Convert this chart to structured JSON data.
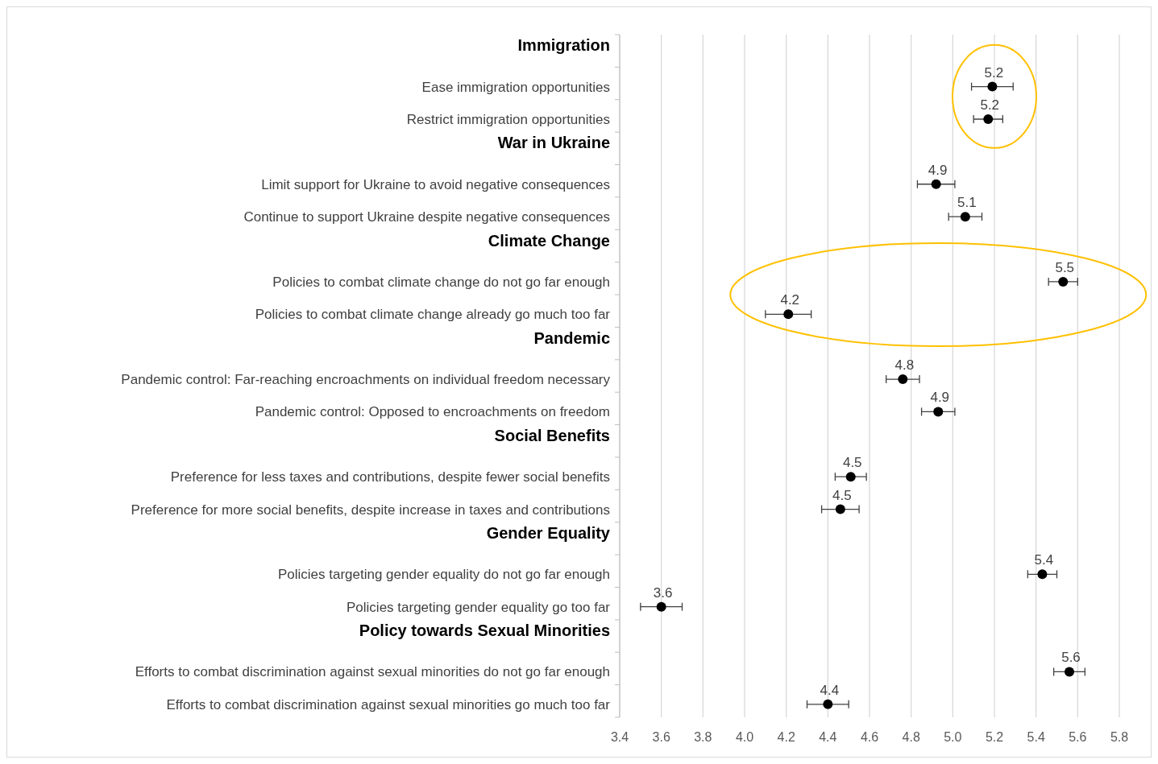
{
  "chart_data": {
    "type": "scatter",
    "orientation": "horizontal",
    "marker": "circle",
    "grid": "x",
    "categories": [
      "Immigration",
      "Ease immigration opportunities",
      "Restrict immigration opportunities",
      "War in Ukraine",
      "Limit support for Ukraine to avoid negative consequences",
      "Continue to support Ukraine despite negative consequences",
      "Climate Change",
      "Policies to combat climate change do not go far enough",
      "Policies to combat climate change already go much too far",
      "Pandemic",
      "Pandemic control: Far-reaching encroachments on individual freedom necessary",
      "Pandemic control: Opposed to encroachments on freedom",
      "Social Benefits",
      "Preference for less taxes and contributions, despite fewer social benefits",
      "Preference for more social benefits, despite increase in taxes and contributions",
      "Gender Equality",
      "Policies targeting gender equality do not go far enough",
      "Policies targeting gender equality go too far",
      "Policy towards Sexual Minorities",
      "Efforts to combat discrimination against sexual minorities do not go far enough",
      "Efforts to combat discrimination against sexual minorities go much too far"
    ],
    "series": [
      {
        "color": "#000000",
        "values": [
          null,
          5.19,
          5.17,
          null,
          4.92,
          5.06,
          null,
          5.53,
          4.21,
          null,
          4.76,
          4.93,
          null,
          4.51,
          4.46,
          null,
          5.43,
          3.6,
          null,
          5.56,
          4.4
        ],
        "errors": [
          null,
          0.1,
          0.07,
          null,
          0.09,
          0.08,
          null,
          0.07,
          0.11,
          null,
          0.08,
          0.08,
          null,
          0.075,
          0.09,
          null,
          0.07,
          0.1,
          null,
          0.075,
          0.1
        ],
        "value_labels": [
          null,
          "5.2",
          "5.2",
          null,
          "4.9",
          "5.1",
          null,
          "5.5",
          "4.2",
          null,
          "4.8",
          "4.9",
          null,
          "4.5",
          "4.5",
          null,
          "5.4",
          "3.6",
          null,
          "5.6",
          "4.4"
        ]
      }
    ],
    "xlim": [
      3.4,
      5.8
    ],
    "xticks": [
      3.4,
      3.6,
      3.8,
      {
        "value": 4,
        "label": "4.0"
      },
      4.2,
      4.4,
      4.6,
      4.8,
      {
        "value": 5,
        "label": "5.0"
      },
      5.2,
      5.4,
      5.6,
      5.8
    ]
  }
}
